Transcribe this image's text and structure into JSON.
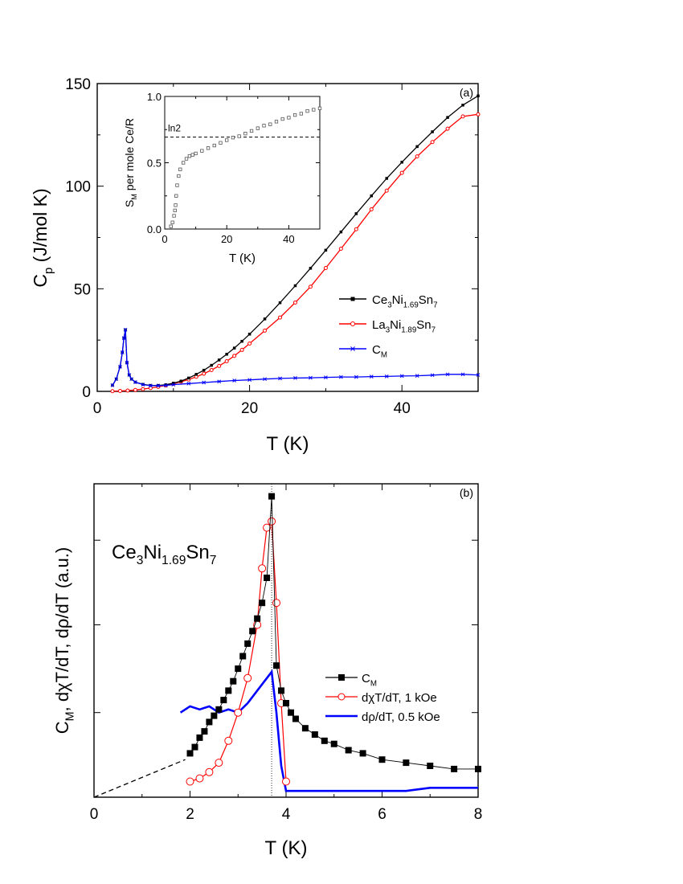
{
  "chart_data": [
    {
      "panel": "(a)",
      "type": "line",
      "xlabel": "T (K)",
      "ylabel": {
        "base": "C",
        "sub": "p",
        "rest": " (J/mol K)"
      },
      "xlim": [
        0,
        50
      ],
      "ylim": [
        0,
        150
      ],
      "xticks": [
        "0",
        "20",
        "40"
      ],
      "yticks": [
        "0",
        "50",
        "100",
        "150"
      ],
      "legend": {
        "placement": "right-middle",
        "entries": [
          {
            "parts": [
              [
                "Ce",
                ""
              ],
              [
                "3",
                "sub"
              ],
              [
                "Ni",
                ""
              ],
              [
                "1.69",
                "sub"
              ],
              [
                "Sn",
                ""
              ],
              [
                "7",
                "sub"
              ]
            ]
          },
          {
            "parts": [
              [
                "La",
                ""
              ],
              [
                "3",
                "sub"
              ],
              [
                "Ni",
                ""
              ],
              [
                "1.89",
                "sub"
              ],
              [
                "Sn",
                ""
              ],
              [
                "7",
                "sub"
              ]
            ]
          },
          {
            "parts": [
              [
                "C",
                ""
              ],
              [
                "M",
                "sub"
              ]
            ]
          }
        ]
      },
      "series": [
        {
          "color": "#000000",
          "marker": "square-filled",
          "x": [
            2,
            2.5,
            3,
            3.3,
            3.5,
            3.7,
            3.9,
            4.2,
            4.5,
            5,
            6,
            7,
            8,
            9,
            10,
            11,
            12,
            13,
            14,
            15,
            16,
            17,
            18,
            19,
            20,
            22,
            24,
            26,
            28,
            30,
            32,
            34,
            36,
            38,
            40,
            42,
            44,
            46,
            48,
            50
          ],
          "y": [
            3,
            6,
            12,
            19,
            26,
            30,
            14,
            8,
            6,
            4.5,
            3.4,
            2.9,
            2.9,
            3.2,
            4,
            5,
            6.5,
            8.3,
            10.3,
            12.7,
            15.3,
            18.1,
            21.1,
            24.4,
            27.9,
            35.3,
            43.2,
            51.5,
            60,
            68.8,
            77.7,
            86.6,
            95.3,
            103.8,
            111.7,
            119.3,
            126.5,
            133.5,
            139.5,
            144
          ]
        },
        {
          "color": "#ff0000",
          "marker": "circle-open",
          "x": [
            2,
            3,
            4,
            5,
            6,
            7,
            8,
            9,
            10,
            11,
            12,
            13,
            14,
            15,
            16,
            17,
            18,
            19,
            20,
            22,
            24,
            26,
            28,
            30,
            32,
            34,
            36,
            38,
            40,
            42,
            44,
            46,
            48,
            50
          ],
          "y": [
            0.1,
            0.2,
            0.4,
            0.7,
            1.1,
            1.6,
            2.2,
            2.9,
            3.7,
            4.7,
            5.8,
            7.1,
            8.6,
            10.4,
            12.4,
            14.7,
            17.3,
            20.2,
            23.3,
            29.6,
            36,
            43.3,
            51,
            60.1,
            69.5,
            79,
            88.7,
            97.8,
            106.5,
            114.5,
            121.5,
            128,
            134,
            135
          ]
        },
        {
          "color": "#0000ff",
          "marker": "x",
          "x": [
            2,
            2.5,
            3,
            3.3,
            3.5,
            3.7,
            3.9,
            4.2,
            4.5,
            5,
            6,
            7,
            8,
            9,
            10,
            12,
            14,
            16,
            18,
            20,
            22,
            24,
            26,
            28,
            30,
            32,
            34,
            36,
            38,
            40,
            42,
            44,
            46,
            48,
            50
          ],
          "y": [
            3,
            6,
            12,
            19,
            26,
            30,
            14,
            8,
            6,
            4.5,
            3.3,
            2.8,
            2.8,
            2.9,
            3.3,
            3.8,
            4.3,
            4.8,
            5.3,
            5.6,
            6,
            6.3,
            6.5,
            6.6,
            6.8,
            7,
            7,
            7.2,
            7.3,
            7.5,
            7.6,
            7.9,
            8.3,
            8.3,
            8
          ]
        }
      ]
    },
    {
      "panel": "(a) inset",
      "type": "scatter",
      "xlabel": "T (K)",
      "ylabel": {
        "base": "S",
        "sub": "M",
        "rest": " per mole Ce/R"
      },
      "xlim": [
        0,
        50
      ],
      "ylim": [
        0,
        1.0
      ],
      "xticks": [
        "0",
        "20",
        "40"
      ],
      "yticks": [
        "0.0",
        "0.5",
        "1.0"
      ],
      "annotation": "ln2",
      "hline": 0.693,
      "series": [
        {
          "color": "#555555",
          "marker": "square-open",
          "x": [
            2,
            2.5,
            3,
            3.3,
            3.5,
            3.7,
            4,
            4.5,
            5,
            6,
            7,
            8,
            9,
            10,
            12,
            14,
            16,
            18,
            20,
            22,
            24,
            26,
            28,
            30,
            32,
            34,
            36,
            38,
            40,
            42,
            44,
            46,
            48,
            50
          ],
          "y": [
            0.02,
            0.05,
            0.1,
            0.14,
            0.18,
            0.25,
            0.33,
            0.4,
            0.45,
            0.5,
            0.53,
            0.55,
            0.56,
            0.57,
            0.59,
            0.61,
            0.63,
            0.65,
            0.67,
            0.69,
            0.7,
            0.72,
            0.74,
            0.76,
            0.78,
            0.79,
            0.81,
            0.83,
            0.84,
            0.86,
            0.87,
            0.89,
            0.9,
            0.91
          ]
        }
      ]
    },
    {
      "panel": "(b)",
      "type": "line",
      "xlabel": "T (K)",
      "ylabel": {
        "parts": [
          [
            "C",
            ""
          ],
          [
            "M",
            "sub"
          ],
          [
            ", dχT/dT, dρ/dT (a.u.)",
            ""
          ]
        ]
      },
      "xlim": [
        0,
        8
      ],
      "ylim": [
        0,
        1
      ],
      "xticks": [
        "0",
        "2",
        "4",
        "6",
        "8"
      ],
      "sample_label": {
        "parts": [
          [
            "Ce",
            ""
          ],
          [
            "3",
            "sub"
          ],
          [
            "Ni",
            ""
          ],
          [
            "1.69",
            "sub"
          ],
          [
            "Sn",
            ""
          ],
          [
            "7",
            "sub"
          ]
        ]
      },
      "vline": 3.7,
      "legend": {
        "placement": "right-middle",
        "entries": [
          {
            "parts": [
              [
                "C",
                ""
              ],
              [
                "M",
                "sub"
              ]
            ]
          },
          {
            "parts": [
              [
                "dχT/dT, 1 kOe",
                ""
              ]
            ]
          },
          {
            "parts": [
              [
                "dρ/dT, 0.5 kOe",
                ""
              ]
            ]
          }
        ]
      },
      "extrapolation": {
        "x": [
          0,
          1.9
        ],
        "y": [
          0,
          0.12
        ]
      },
      "series": [
        {
          "color": "#000000",
          "marker": "square-filled",
          "x": [
            2,
            2.1,
            2.2,
            2.3,
            2.4,
            2.5,
            2.6,
            2.7,
            2.8,
            2.9,
            3,
            3.1,
            3.2,
            3.3,
            3.4,
            3.5,
            3.6,
            3.7,
            3.8,
            3.9,
            4,
            4.1,
            4.2,
            4.4,
            4.6,
            4.8,
            5,
            5.3,
            5.6,
            6,
            6.5,
            7,
            7.5,
            8
          ],
          "y": [
            0.14,
            0.16,
            0.19,
            0.21,
            0.24,
            0.26,
            0.28,
            0.31,
            0.34,
            0.37,
            0.41,
            0.45,
            0.49,
            0.53,
            0.57,
            0.62,
            0.7,
            0.96,
            0.42,
            0.34,
            0.3,
            0.27,
            0.25,
            0.22,
            0.2,
            0.18,
            0.17,
            0.15,
            0.14,
            0.12,
            0.11,
            0.1,
            0.09,
            0.09
          ]
        },
        {
          "color": "#ff0000",
          "marker": "circle-open",
          "x": [
            2,
            2.2,
            2.4,
            2.6,
            2.8,
            3,
            3.2,
            3.4,
            3.5,
            3.6,
            3.7,
            3.8,
            3.9,
            4
          ],
          "y": [
            0.05,
            0.06,
            0.08,
            0.11,
            0.18,
            0.27,
            0.38,
            0.55,
            0.73,
            0.86,
            0.88,
            0.62,
            0.3,
            0.05
          ]
        },
        {
          "color": "#0000ff",
          "marker": "none",
          "x": [
            1.8,
            2,
            2.2,
            2.4,
            2.6,
            2.8,
            3,
            3.2,
            3.4,
            3.6,
            3.7,
            3.8,
            3.9,
            4,
            4.2,
            4.5,
            5,
            5.5,
            6,
            6.5,
            7,
            7.5,
            8
          ],
          "y": [
            0.27,
            0.29,
            0.28,
            0.29,
            0.27,
            0.28,
            0.27,
            0.3,
            0.34,
            0.38,
            0.4,
            0.27,
            0.1,
            0.02,
            0.02,
            0.02,
            0.02,
            0.02,
            0.02,
            0.02,
            0.03,
            0.03,
            0.03
          ]
        }
      ]
    }
  ]
}
